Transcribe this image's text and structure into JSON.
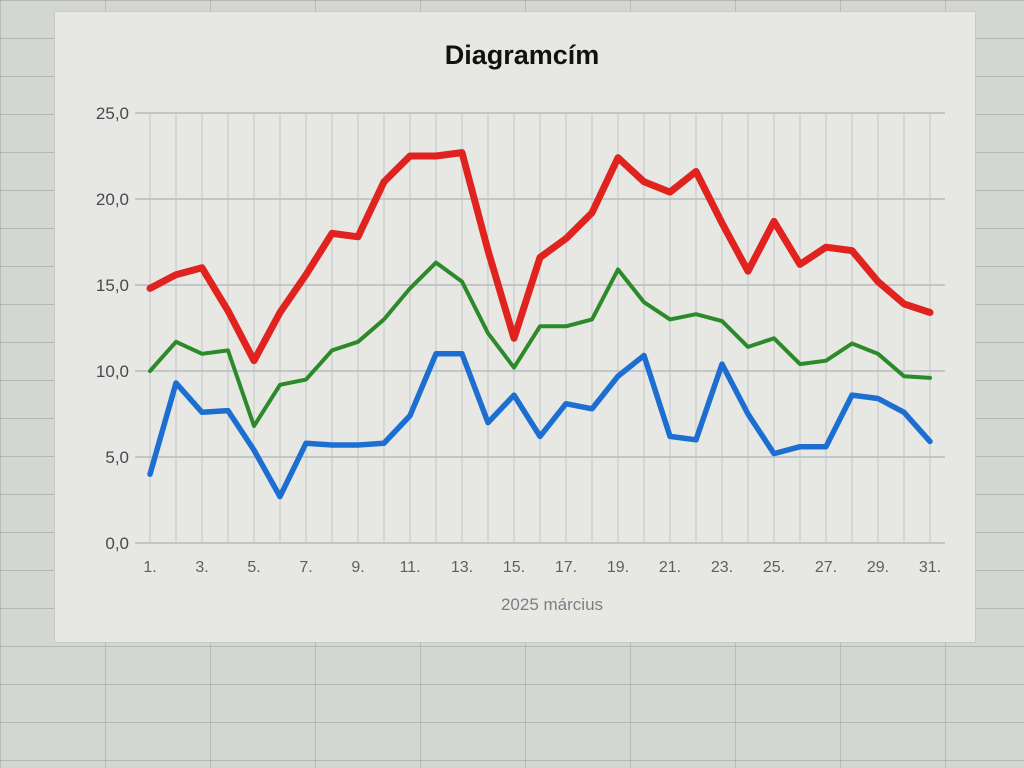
{
  "chart_data": {
    "type": "line",
    "title": "Diagramcím",
    "xlabel": "2025 március",
    "ylabel": "",
    "ylim": [
      0,
      25
    ],
    "yticks": [
      "0,0",
      "5,0",
      "10,0",
      "15,0",
      "20,0",
      "25,0"
    ],
    "x": [
      1,
      2,
      3,
      4,
      5,
      6,
      7,
      8,
      9,
      10,
      11,
      12,
      13,
      14,
      15,
      16,
      17,
      18,
      19,
      20,
      21,
      22,
      23,
      24,
      25,
      26,
      27,
      28,
      29,
      30,
      31
    ],
    "xtick_labels": [
      "1.",
      "3.",
      "5.",
      "7.",
      "9.",
      "11.",
      "13.",
      "15.",
      "17.",
      "19.",
      "21.",
      "23.",
      "25.",
      "27.",
      "29.",
      "31."
    ],
    "grid": true,
    "legend": "none",
    "series": [
      {
        "color": "#e0231f",
        "values": [
          14.8,
          15.6,
          16.0,
          13.5,
          10.6,
          13.4,
          15.6,
          18.0,
          17.8,
          21.0,
          22.5,
          22.5,
          22.7,
          17.0,
          11.9,
          16.6,
          17.7,
          19.2,
          22.4,
          21.0,
          20.4,
          21.6,
          18.6,
          15.8,
          18.7,
          16.2,
          17.2,
          17.0,
          15.2,
          13.9,
          13.4
        ]
      },
      {
        "color": "#2c8a2a",
        "values": [
          10.0,
          11.7,
          11.0,
          11.2,
          6.8,
          9.2,
          9.5,
          11.2,
          11.7,
          13.0,
          14.8,
          16.3,
          15.2,
          12.2,
          10.2,
          12.6,
          12.6,
          13.0,
          15.9,
          14.0,
          13.0,
          13.3,
          12.9,
          11.4,
          11.9,
          10.4,
          10.6,
          11.6,
          11.0,
          9.7,
          9.6
        ]
      },
      {
        "color": "#1c6fd1",
        "values": [
          4.0,
          9.3,
          7.6,
          7.7,
          5.4,
          2.7,
          5.8,
          5.7,
          5.7,
          5.8,
          7.4,
          11.0,
          11.0,
          7.0,
          8.6,
          6.2,
          8.1,
          7.8,
          9.7,
          10.9,
          6.2,
          6.0,
          10.4,
          7.5,
          5.2,
          5.6,
          5.6,
          8.6,
          8.4,
          7.6,
          5.9
        ]
      }
    ]
  }
}
